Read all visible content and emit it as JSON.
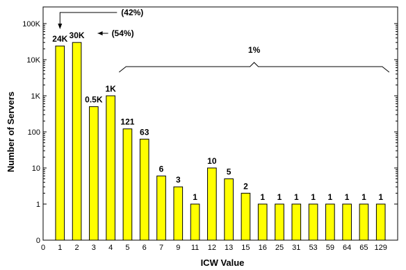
{
  "chart_data": {
    "type": "bar",
    "title": "",
    "xlabel": "ICW Value",
    "ylabel": "Number of Servers",
    "y_scale": "log",
    "ylim": [
      0,
      100000
    ],
    "y_ticks": [
      "0",
      "1",
      "10",
      "100",
      "1K",
      "10K",
      "100K"
    ],
    "x_ticks": [
      "0",
      "1",
      "2",
      "3",
      "4",
      "5",
      "6",
      "7",
      "9",
      "11",
      "12",
      "13",
      "15",
      "16",
      "25",
      "31",
      "53",
      "59",
      "64",
      "65",
      "129"
    ],
    "grid": false,
    "legend": "none",
    "bar_color": "#ffff00",
    "categories": [
      "1",
      "2",
      "3",
      "4",
      "5",
      "6",
      "7",
      "9",
      "11",
      "12",
      "13",
      "15",
      "16",
      "25",
      "31",
      "53",
      "59",
      "64",
      "65",
      "129"
    ],
    "values": [
      24000,
      30000,
      500,
      1000,
      121,
      63,
      6,
      3,
      1,
      10,
      5,
      2,
      1,
      1,
      1,
      1,
      1,
      1,
      1,
      1
    ],
    "data_labels": [
      "24K",
      "30K",
      "0.5K",
      "1K",
      "121",
      "63",
      "6",
      "3",
      "1",
      "10",
      "5",
      "2",
      "1",
      "1",
      "1",
      "1",
      "1",
      "1",
      "1",
      "1"
    ],
    "annotations": [
      {
        "text": "(42%)",
        "category": "1"
      },
      {
        "text": "(54%)",
        "category": "2"
      },
      {
        "text": "1%",
        "span": [
          "5",
          "129"
        ]
      }
    ]
  }
}
